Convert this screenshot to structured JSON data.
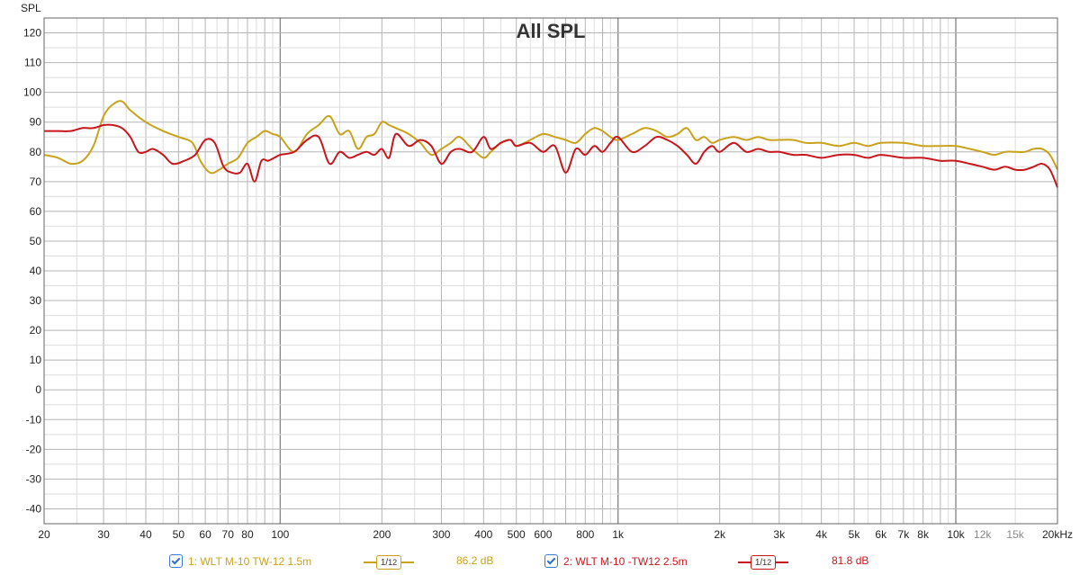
{
  "colors": {
    "series1": "#c9a21b",
    "series2": "#c8161d",
    "grid_major": "#b5b5b5",
    "grid_minor": "#dddddd",
    "grid_decade": "#8a8a8a"
  },
  "chart_data": {
    "type": "line",
    "title": "All SPL",
    "ylabel": "SPL",
    "xscale": "log",
    "xlim": [
      20,
      20000
    ],
    "ylim": [
      -45,
      125
    ],
    "grid": true,
    "y_ticks": [
      120,
      110,
      100,
      90,
      80,
      70,
      60,
      50,
      40,
      30,
      20,
      10,
      0,
      -10,
      -20,
      -30,
      -40
    ],
    "y_tick_labels": [
      "120",
      "110",
      "100",
      "90",
      "80",
      "70",
      "60",
      "50",
      "40",
      "30",
      "20",
      "10",
      "0",
      "-10",
      "-20",
      "-30",
      "-40"
    ],
    "x_ticks": [
      {
        "v": 20,
        "label": "20",
        "minor": false
      },
      {
        "v": 30,
        "label": "30",
        "minor": false
      },
      {
        "v": 40,
        "label": "40",
        "minor": false
      },
      {
        "v": 50,
        "label": "50",
        "minor": false
      },
      {
        "v": 60,
        "label": "60",
        "minor": false
      },
      {
        "v": 70,
        "label": "70",
        "minor": false
      },
      {
        "v": 80,
        "label": "80",
        "minor": false
      },
      {
        "v": 100,
        "label": "100",
        "minor": false
      },
      {
        "v": 200,
        "label": "200",
        "minor": false
      },
      {
        "v": 300,
        "label": "300",
        "minor": false
      },
      {
        "v": 400,
        "label": "400",
        "minor": false
      },
      {
        "v": 500,
        "label": "500",
        "minor": false
      },
      {
        "v": 600,
        "label": "600",
        "minor": false
      },
      {
        "v": 800,
        "label": "800",
        "minor": false
      },
      {
        "v": 1000,
        "label": "1k",
        "minor": false
      },
      {
        "v": 2000,
        "label": "2k",
        "minor": false
      },
      {
        "v": 3000,
        "label": "3k",
        "minor": false
      },
      {
        "v": 4000,
        "label": "4k",
        "minor": false
      },
      {
        "v": 5000,
        "label": "5k",
        "minor": false
      },
      {
        "v": 6000,
        "label": "6k",
        "minor": false
      },
      {
        "v": 7000,
        "label": "7k",
        "minor": false
      },
      {
        "v": 8000,
        "label": "8k",
        "minor": false
      },
      {
        "v": 10000,
        "label": "10k",
        "minor": false
      },
      {
        "v": 12000,
        "label": "12k",
        "minor": true
      },
      {
        "v": 15000,
        "label": "15k",
        "minor": true
      },
      {
        "v": 20000,
        "label": "20kHz",
        "minor": false
      }
    ],
    "series": [
      {
        "name": "1: WLT M-10 TW-12 1.5m",
        "x": [
          20,
          22,
          24,
          26,
          28,
          30,
          32,
          34,
          36,
          40,
          45,
          50,
          55,
          58,
          62,
          66,
          70,
          75,
          80,
          85,
          90,
          95,
          100,
          110,
          120,
          130,
          140,
          150,
          160,
          170,
          180,
          190,
          200,
          210,
          220,
          240,
          260,
          280,
          300,
          320,
          340,
          370,
          400,
          420,
          450,
          480,
          500,
          550,
          600,
          650,
          700,
          750,
          800,
          850,
          900,
          950,
          1000,
          1100,
          1200,
          1300,
          1400,
          1500,
          1600,
          1700,
          1800,
          1900,
          2000,
          2200,
          2400,
          2600,
          2800,
          3000,
          3300,
          3600,
          4000,
          4500,
          5000,
          5500,
          6000,
          7000,
          8000,
          9000,
          10000,
          11000,
          12000,
          13000,
          14000,
          15000,
          16000,
          17000,
          18000,
          19000,
          20000
        ],
        "y": [
          79,
          78,
          76,
          77,
          82,
          92,
          96,
          97,
          94,
          90,
          87,
          85,
          83,
          77,
          73,
          74,
          76,
          78,
          83,
          85,
          87,
          86,
          85,
          80,
          86,
          89,
          92,
          86,
          87,
          81,
          85,
          86,
          90,
          89,
          88,
          86,
          83,
          79,
          81,
          83,
          85,
          81,
          78,
          80,
          83,
          84,
          82,
          84,
          86,
          85,
          84,
          83,
          86,
          88,
          87,
          85,
          84,
          86,
          88,
          87,
          85,
          86,
          88,
          84,
          85,
          83,
          84,
          85,
          84,
          85,
          84,
          84,
          84,
          83,
          83,
          82,
          83,
          82,
          83,
          83,
          82,
          82,
          82,
          81,
          80,
          79,
          80,
          80,
          80,
          81,
          81,
          79,
          74
        ]
      },
      {
        "name": "2: WLT M-10 -TW12 2.5m",
        "x": [
          20,
          22,
          24,
          26,
          28,
          30,
          32,
          34,
          36,
          38,
          40,
          42,
          45,
          48,
          52,
          56,
          60,
          64,
          68,
          72,
          76,
          80,
          84,
          88,
          92,
          96,
          100,
          110,
          120,
          130,
          140,
          150,
          160,
          170,
          180,
          190,
          200,
          210,
          220,
          240,
          260,
          280,
          300,
          320,
          340,
          370,
          400,
          420,
          450,
          480,
          500,
          550,
          600,
          650,
          700,
          750,
          800,
          850,
          900,
          950,
          1000,
          1100,
          1200,
          1300,
          1400,
          1500,
          1600,
          1700,
          1800,
          1900,
          2000,
          2200,
          2400,
          2600,
          2800,
          3000,
          3300,
          3600,
          4000,
          4500,
          5000,
          5500,
          6000,
          7000,
          8000,
          9000,
          10000,
          11000,
          12000,
          13000,
          14000,
          15000,
          16000,
          17000,
          18000,
          19000,
          20000
        ],
        "y": [
          87,
          87,
          87,
          88,
          88,
          89,
          89,
          88,
          85,
          80,
          80,
          81,
          79,
          76,
          77,
          79,
          84,
          83,
          75,
          73,
          73,
          76,
          70,
          77,
          77,
          78,
          79,
          80,
          84,
          85,
          76,
          80,
          78,
          79,
          80,
          79,
          81,
          78,
          86,
          82,
          84,
          82,
          76,
          80,
          81,
          80,
          85,
          81,
          83,
          84,
          82,
          83,
          80,
          82,
          73,
          81,
          79,
          82,
          80,
          83,
          85,
          80,
          82,
          85,
          84,
          82,
          79,
          76,
          80,
          82,
          80,
          83,
          80,
          81,
          80,
          80,
          79,
          79,
          78,
          79,
          79,
          78,
          79,
          78,
          78,
          77,
          77,
          76,
          75,
          74,
          75,
          74,
          74,
          75,
          76,
          74,
          68
        ]
      }
    ]
  },
  "legend": {
    "items": [
      {
        "label": "1: WLT M-10 TW-12 1.5m",
        "smoothing_num": "1",
        "smoothing_den": "12",
        "level": "86.2 dB"
      },
      {
        "label": "2: WLT M-10 -TW12 2.5m",
        "smoothing_num": "1",
        "smoothing_den": "12",
        "level": "81.8 dB"
      }
    ]
  }
}
